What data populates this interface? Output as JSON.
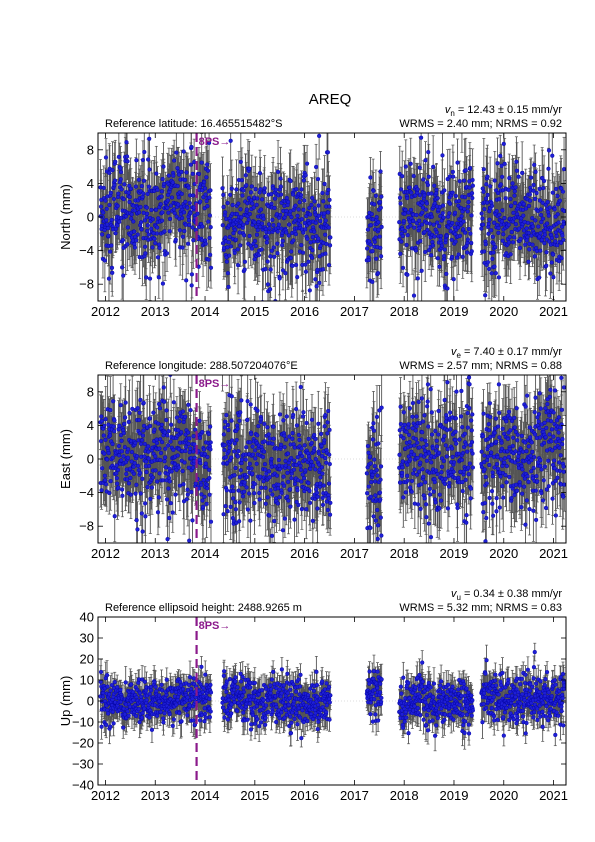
{
  "page_title": "AREQ",
  "chart_data": [
    {
      "type": "scatter",
      "component": "north",
      "ylabel": "North (mm)",
      "reference": "Reference latitude: 16.465515482°S",
      "velocity_symbol": "v",
      "velocity_sub": "n",
      "velocity_text": " = 12.43 ± 0.15 mm/yr",
      "stats": "WRMS = 2.40 mm; NRMS = 0.92",
      "ylim": [
        -10,
        10
      ],
      "yticks": [
        -8,
        -4,
        0,
        4,
        8
      ],
      "xlim": [
        2011.85,
        2021.25
      ],
      "xticks": [
        2012,
        2013,
        2014,
        2015,
        2016,
        2017,
        2018,
        2019,
        2020,
        2021
      ],
      "spread": 3.2,
      "err": 3.0,
      "event": {
        "x": 2013.83,
        "label": "8PS→"
      },
      "segments": [
        {
          "start": 2011.9,
          "end": 2013.82,
          "mean": 0.5
        },
        {
          "start": 2013.85,
          "end": 2014.12,
          "mean": 1.0
        },
        {
          "start": 2014.35,
          "end": 2016.52,
          "mean": -1.0
        },
        {
          "start": 2017.25,
          "end": 2017.55,
          "mean": -2.0
        },
        {
          "start": 2017.9,
          "end": 2019.38,
          "mean": 0.5
        },
        {
          "start": 2019.55,
          "end": 2021.22,
          "mean": -0.5
        }
      ],
      "grid": false
    },
    {
      "type": "scatter",
      "component": "east",
      "ylabel": "East (mm)",
      "reference": "Reference longitude: 288.507204076°E",
      "velocity_symbol": "v",
      "velocity_sub": "e",
      "velocity_text": " = 7.40 ± 0.17 mm/yr",
      "stats": "WRMS = 2.57 mm; NRMS = 0.88",
      "ylim": [
        -10,
        10
      ],
      "yticks": [
        -8,
        -4,
        0,
        4,
        8
      ],
      "xlim": [
        2011.85,
        2021.25
      ],
      "xticks": [
        2012,
        2013,
        2014,
        2015,
        2016,
        2017,
        2018,
        2019,
        2020,
        2021
      ],
      "spread": 3.4,
      "err": 3.2,
      "event": {
        "x": 2013.83,
        "label": "8PS→"
      },
      "segments": [
        {
          "start": 2011.9,
          "end": 2013.82,
          "mean": 0.5
        },
        {
          "start": 2013.85,
          "end": 2014.12,
          "mean": 0.0
        },
        {
          "start": 2014.35,
          "end": 2016.52,
          "mean": -0.5
        },
        {
          "start": 2017.25,
          "end": 2017.55,
          "mean": -3.0
        },
        {
          "start": 2017.9,
          "end": 2019.38,
          "mean": 0.5
        },
        {
          "start": 2019.55,
          "end": 2021.22,
          "mean": 0.5
        }
      ],
      "grid": false
    },
    {
      "type": "scatter",
      "component": "up",
      "ylabel": "Up (mm)",
      "reference": "Reference ellipsoid height: 2488.9265 m",
      "velocity_symbol": "v",
      "velocity_sub": "u",
      "velocity_text": " = 0.34 ± 0.38 mm/yr",
      "stats": "WRMS = 5.32 mm; NRMS = 0.83",
      "ylim": [
        -40,
        40
      ],
      "yticks": [
        -40,
        -30,
        -20,
        -10,
        0,
        10,
        20,
        30,
        40
      ],
      "xlim": [
        2011.85,
        2021.25
      ],
      "xticks": [
        2012,
        2013,
        2014,
        2015,
        2016,
        2017,
        2018,
        2019,
        2020,
        2021
      ],
      "spread": 5.5,
      "err": 6.0,
      "event": {
        "x": 2013.83,
        "label": "8PS→"
      },
      "segments": [
        {
          "start": 2011.9,
          "end": 2013.82,
          "mean": 0.0
        },
        {
          "start": 2013.85,
          "end": 2014.12,
          "mean": 0.0
        },
        {
          "start": 2014.35,
          "end": 2016.52,
          "mean": 0.0
        },
        {
          "start": 2017.25,
          "end": 2017.55,
          "mean": 3.0
        },
        {
          "start": 2017.9,
          "end": 2019.38,
          "mean": -1.0
        },
        {
          "start": 2019.55,
          "end": 2021.22,
          "mean": 1.0
        }
      ],
      "grid": false
    }
  ],
  "colors": {
    "point": "#1f1fd6",
    "errorbar": "#555555",
    "event_line": "#8b1a8b",
    "zero_line": "#bbbbbb"
  }
}
